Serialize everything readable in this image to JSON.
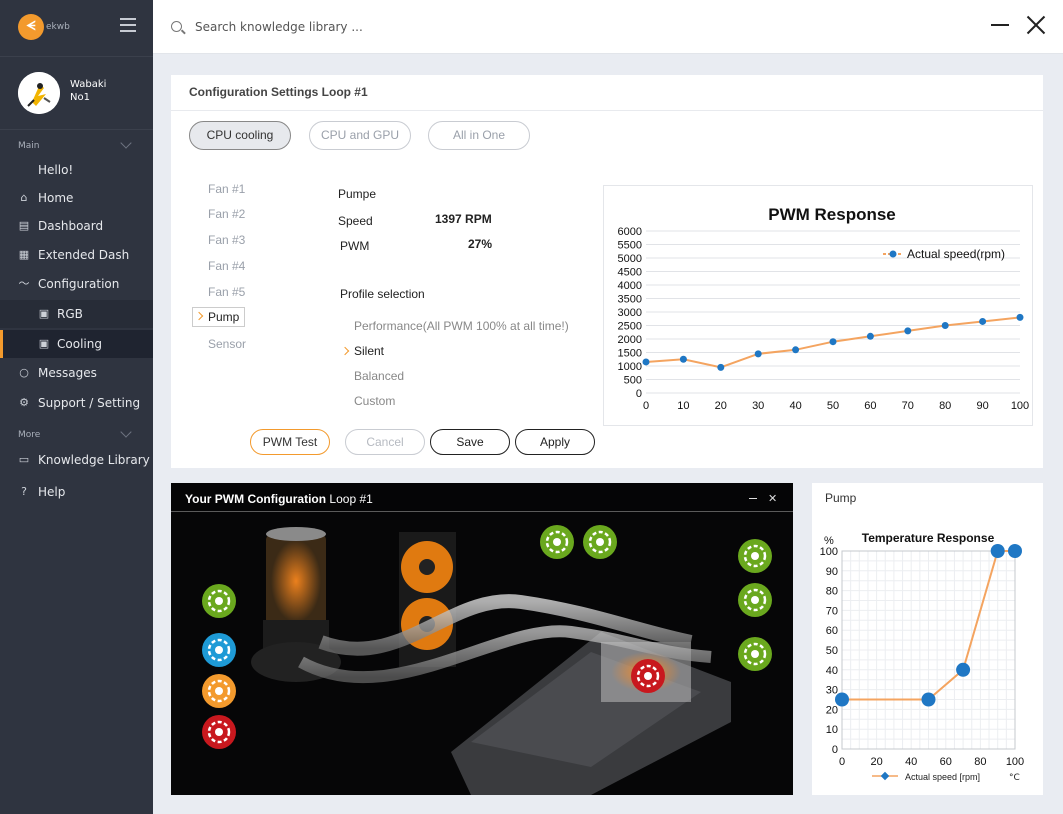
{
  "app": {
    "logo_text": "ekwb"
  },
  "user": {
    "name_line1": "Wabaki",
    "name_line2": "No1"
  },
  "search": {
    "placeholder": "Search knowledge library ..."
  },
  "sidebar": {
    "main_title": "Main",
    "more_title": "More",
    "items": [
      {
        "label": "Hello!"
      },
      {
        "label": "Home"
      },
      {
        "label": "Dashboard"
      },
      {
        "label": "Extended Dash"
      },
      {
        "label": "Configuration"
      },
      {
        "label": "RGB"
      },
      {
        "label": "Cooling"
      },
      {
        "label": "Messages"
      },
      {
        "label": "Support / Setting"
      }
    ],
    "more_items": [
      {
        "label": "Knowledge Library"
      },
      {
        "label": "Help"
      }
    ]
  },
  "config": {
    "title": "Configuration Settings Loop #1",
    "tabs": [
      {
        "label": "CPU cooling",
        "active": true
      },
      {
        "label": "CPU and GPU",
        "active": false
      },
      {
        "label": "All in One",
        "active": false
      }
    ],
    "devices": [
      "Fan #1",
      "Fan #2",
      "Fan #3",
      "Fan #4",
      "Fan #5",
      "Pump",
      "Sensor"
    ],
    "selected_device": "Pump",
    "device_name": "Pumpe",
    "speed_label": "Speed",
    "speed_value": "1397 RPM",
    "pwm_label": "PWM",
    "pwm_value": "27%",
    "profile_title": "Profile selection",
    "profiles": [
      "Performance(All PWM 100% at all time!)",
      "Silent",
      "Balanced",
      "Custom"
    ],
    "selected_profile": "Silent",
    "buttons": {
      "pwm_test": "PWM Test",
      "cancel": "Cancel",
      "save": "Save",
      "apply": "Apply"
    }
  },
  "pwm_panel": {
    "title_bold": "Your PWM Configuration",
    "title_rest": " Loop #1",
    "minimize": "—",
    "close": "✕"
  },
  "pump_panel": {
    "title": "Pump"
  },
  "colors": {
    "accent": "#f39a2d",
    "sidebar_bg": "#2f3440",
    "series_line": "#f4a460",
    "series_point": "#1f77c4",
    "green_icon": "#6aa81e",
    "blue_icon": "#1e9ad6",
    "red_icon": "#c8181e"
  },
  "chart_data": [
    {
      "type": "line",
      "title": "PWM Response",
      "series": [
        {
          "name": "Actual speed(rpm)",
          "x": [
            0,
            10,
            20,
            30,
            40,
            50,
            60,
            70,
            80,
            90,
            100
          ],
          "y": [
            1150,
            1250,
            950,
            1450,
            1600,
            1900,
            2100,
            2300,
            2500,
            2650,
            2800
          ]
        }
      ],
      "xticks": [
        0,
        10,
        20,
        30,
        40,
        50,
        60,
        70,
        80,
        90,
        100
      ],
      "yticks": [
        0,
        500,
        1000,
        1500,
        2000,
        2500,
        3000,
        3500,
        4000,
        4500,
        5000,
        5500,
        6000
      ],
      "xlim": [
        0,
        100
      ],
      "ylim": [
        0,
        6000
      ],
      "grid": "horizontal",
      "legend": "top-right"
    },
    {
      "type": "line",
      "title": "Temperature Response",
      "series": [
        {
          "name": "Actual speed [rpm]",
          "x": [
            0,
            50,
            70,
            90,
            100
          ],
          "y": [
            25,
            25,
            40,
            100,
            100
          ]
        }
      ],
      "xticks": [
        0,
        20,
        40,
        60,
        80,
        100
      ],
      "yticks": [
        0,
        10,
        20,
        30,
        40,
        50,
        60,
        70,
        80,
        90,
        100
      ],
      "xlim": [
        0,
        100
      ],
      "ylim": [
        0,
        100
      ],
      "ylabel": "%",
      "xlabel": "°C",
      "grid": "both",
      "legend": "bottom"
    }
  ]
}
